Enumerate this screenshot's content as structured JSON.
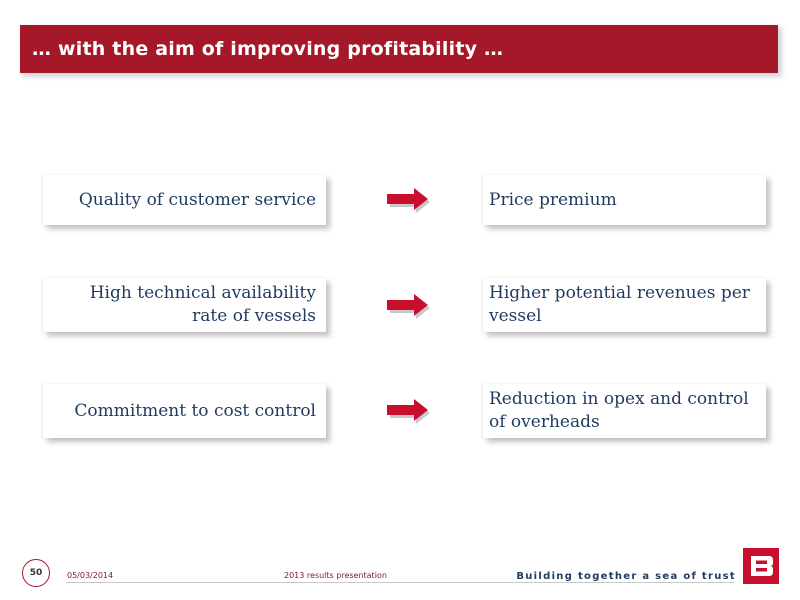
{
  "header": {
    "title": "… with the aim of improving profitability …"
  },
  "rows": [
    {
      "left": "Quality of customer service",
      "right": "Price premium"
    },
    {
      "left": "High technical availability rate of vessels",
      "right": "Higher potential revenues per vessel"
    },
    {
      "left": "Commitment to cost control",
      "right": "Reduction in opex and control of overheads"
    }
  ],
  "footer": {
    "page_number": "50",
    "date": "05/03/2014",
    "presentation": "2013 results presentation",
    "tagline": "Building together a sea of trust"
  },
  "icons": {
    "arrow": "right-arrow-icon",
    "logo": "bourbon-logo"
  },
  "colors": {
    "brand_red": "#a4182a",
    "text_navy": "#1f3a5f"
  }
}
